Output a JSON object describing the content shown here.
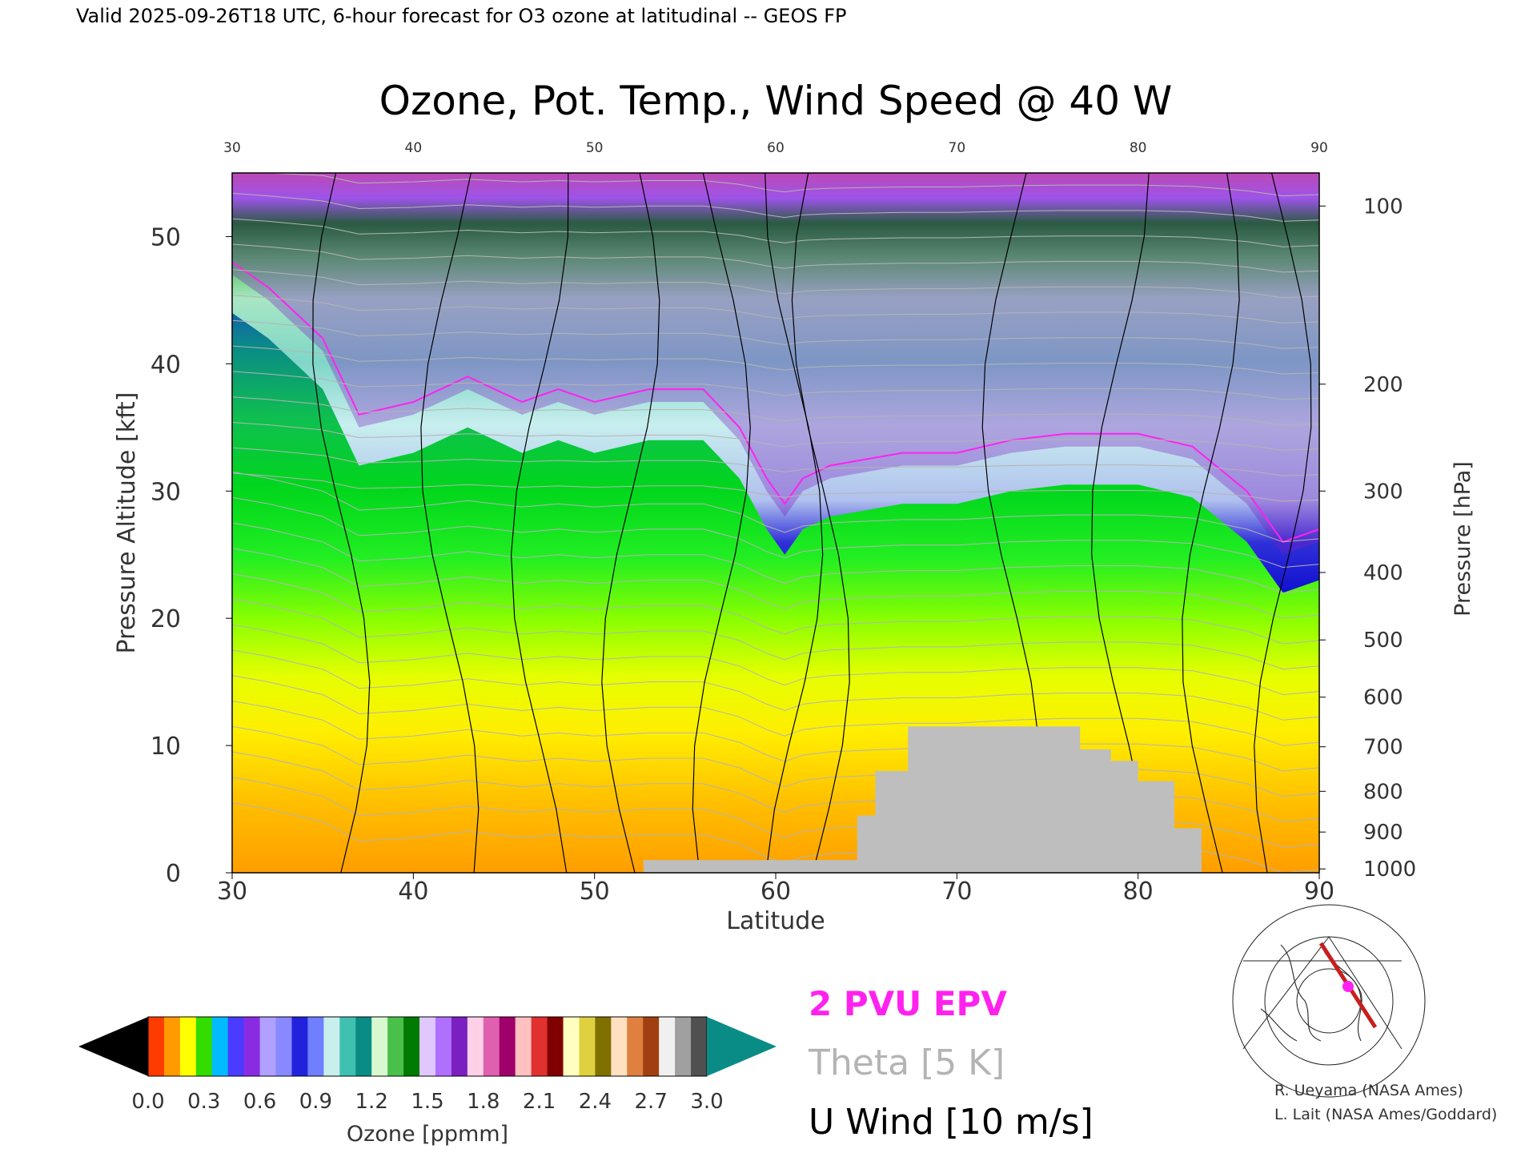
{
  "header": {
    "valid_line": "Valid 2025-09-26T18 UTC, 6-hour forecast for O3 ozone at latitudinal -- GEOS FP"
  },
  "chart_data": {
    "type": "heatmap",
    "title": "Ozone, Pot. Temp., Wind Speed @ 40 W",
    "xlabel": "Latitude",
    "ylabel_left": "Pressure Altitude [kft]",
    "ylabel_right": "Pressure [hPa]",
    "xlim": [
      30,
      90
    ],
    "ylim_kft": [
      0,
      55
    ],
    "x_ticks": [
      "30",
      "40",
      "50",
      "60",
      "70",
      "80",
      "90"
    ],
    "top_x_ticks": [
      "30",
      "40",
      "50",
      "60",
      "70",
      "80",
      "90"
    ],
    "y_ticks_kft": [
      "0",
      "10",
      "20",
      "30",
      "40",
      "50"
    ],
    "pressure_ticks": [
      {
        "label": "100",
        "kft": 52.4
      },
      {
        "label": "200",
        "kft": 38.4
      },
      {
        "label": "300",
        "kft": 30.0
      },
      {
        "label": "400",
        "kft": 23.6
      },
      {
        "label": "500",
        "kft": 18.3
      },
      {
        "label": "600",
        "kft": 13.8
      },
      {
        "label": "700",
        "kft": 9.9
      },
      {
        "label": "800",
        "kft": 6.4
      },
      {
        "label": "900",
        "kft": 3.2
      },
      {
        "label": "1000",
        "kft": 0.3
      }
    ],
    "ozone_profile": {
      "lat": [
        30,
        32,
        35,
        37,
        40,
        43,
        46,
        48,
        50,
        53,
        56,
        58,
        59.5,
        60.5,
        61.5,
        63,
        65,
        67,
        70,
        73,
        76,
        80,
        83,
        86,
        88,
        90
      ],
      "tropopause_kft": [
        44,
        42,
        38,
        32,
        33,
        35,
        33,
        34,
        33,
        34,
        34,
        31,
        27,
        25,
        27,
        28,
        28.5,
        29,
        29,
        30,
        30.5,
        30.5,
        29.5,
        26,
        22,
        23
      ],
      "ozone_high_kft": [
        54,
        53,
        53,
        52,
        51,
        52,
        51,
        53,
        51,
        52,
        52,
        52,
        51,
        49,
        52,
        51,
        50,
        51,
        51,
        51,
        50,
        51,
        50,
        45,
        44,
        44
      ]
    },
    "colorbar": {
      "label": "Ozone [ppmm]",
      "tick_labels": [
        "0.0",
        "0.3",
        "0.6",
        "0.9",
        "1.2",
        "1.5",
        "1.8",
        "2.1",
        "2.4",
        "2.7",
        "3.0"
      ],
      "range": [
        0,
        3.0
      ],
      "segment_colors": [
        "#ff3b00",
        "#ff9a00",
        "#ffff00",
        "#33dd00",
        "#00bbff",
        "#4a3cff",
        "#8a2be2",
        "#b0a0ff",
        "#8888ff",
        "#2222dd",
        "#6f7fff",
        "#c8eeee",
        "#40c0b0",
        "#0a8c86",
        "#d8f8d0",
        "#4ac04a",
        "#007a00",
        "#e0c8ff",
        "#b070ff",
        "#7a20c0",
        "#ffd0e8",
        "#e060b0",
        "#a0006a",
        "#ffc0c0",
        "#e03030",
        "#800000",
        "#ffffc0",
        "#e0d040",
        "#807000",
        "#ffe0c0",
        "#e08040",
        "#a04010",
        "#f0f0f0",
        "#a0a0a0",
        "#505050"
      ],
      "under_color": "#000000",
      "over_color": "#0a8c86"
    },
    "legend": {
      "epv": "2 PVU EPV",
      "theta": "Theta [5 K]",
      "uwind": "U Wind [10 m/s]"
    },
    "colors": {
      "epv": "#ff22ee",
      "theta": "#b4b4b4",
      "uwind": "#000000",
      "terrain": "#bebebe"
    }
  },
  "credits": {
    "line1": "R. Ueyama (NASA Ames)",
    "line2": "L. Lait (NASA Ames/Goddard)"
  },
  "inset_map": {
    "track_color": "#c81e1e",
    "marker_color": "#ff22ee"
  }
}
